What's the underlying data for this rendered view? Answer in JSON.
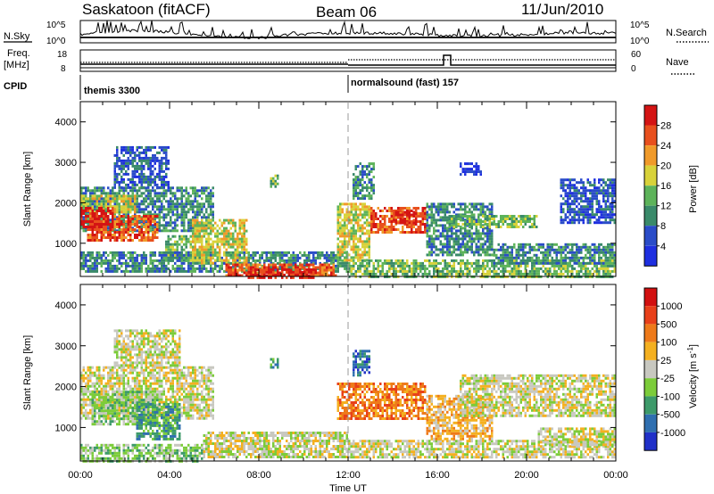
{
  "header": {
    "title": "Saskatoon (fitACF)",
    "beam": "Beam 06",
    "date": "11/Jun/2010"
  },
  "top_panels": {
    "nsky_label": "N.Sky",
    "nsearch_label": "N.Search",
    "nsky_axis": [
      "10^5",
      "10^0"
    ],
    "freq_label_1": "Freq.",
    "freq_label_2": "[MHz]",
    "freq_axis": [
      "18",
      "8"
    ],
    "nave_label": "Nave",
    "nave_axis": [
      "60",
      "0"
    ],
    "cpid_label": "CPID",
    "modes": [
      {
        "name": "themis 3300",
        "start_hour": 0
      },
      {
        "name": "normalsound (fast) 157",
        "start_hour": 12
      }
    ]
  },
  "chart_data": [
    {
      "type": "heatmap",
      "name": "power",
      "ylabel": "Slant Range [km]",
      "xlabel": "Time UT",
      "x_ticks": [
        "00:00",
        "04:00",
        "08:00",
        "12:00",
        "16:00",
        "20:00",
        "00:00"
      ],
      "x_range_hours": [
        0,
        24
      ],
      "y_ticks": [
        1000,
        2000,
        3000,
        4000
      ],
      "ylim": [
        180,
        4500
      ],
      "colorbar_label": "Power [dB]",
      "colorbar_ticks": [
        4,
        8,
        12,
        16,
        20,
        24,
        28
      ],
      "colorbar_colors": [
        "#1e2fe0",
        "#2a4cc8",
        "#3a8a6a",
        "#5db35a",
        "#d8d23a",
        "#f09a2a",
        "#e8501e",
        "#d41414"
      ],
      "regions": [
        {
          "t0": 0.0,
          "t1": 6.0,
          "r0": 1300,
          "r1": 2400,
          "level": 2
        },
        {
          "t0": 0.0,
          "t1": 2.5,
          "r0": 1800,
          "r1": 2200,
          "level": 4
        },
        {
          "t0": 1.5,
          "t1": 4.0,
          "r0": 2400,
          "r1": 3400,
          "level": 1
        },
        {
          "t0": 0.3,
          "t1": 3.5,
          "r0": 1100,
          "r1": 1700,
          "level": 6
        },
        {
          "t0": 0.0,
          "t1": 1.5,
          "r0": 1400,
          "r1": 1900,
          "level": 7
        },
        {
          "t0": 3.8,
          "t1": 5.5,
          "r0": 600,
          "r1": 1200,
          "level": 3
        },
        {
          "t0": 0.0,
          "t1": 12.0,
          "r0": 300,
          "r1": 800,
          "level": 2
        },
        {
          "t0": 5.0,
          "t1": 7.5,
          "r0": 500,
          "r1": 1600,
          "level": 4
        },
        {
          "t0": 6.5,
          "t1": 11.5,
          "r0": 180,
          "r1": 500,
          "level": 6
        },
        {
          "t0": 7.5,
          "t1": 10.5,
          "r0": 180,
          "r1": 380,
          "level": 7
        },
        {
          "t0": 8.5,
          "t1": 8.9,
          "r0": 2400,
          "r1": 2700,
          "level": 3
        },
        {
          "t0": 11.5,
          "t1": 13.0,
          "r0": 600,
          "r1": 2000,
          "level": 4
        },
        {
          "t0": 12.2,
          "t1": 13.2,
          "r0": 2100,
          "r1": 3000,
          "level": 2
        },
        {
          "t0": 13.0,
          "t1": 15.5,
          "r0": 1300,
          "r1": 1900,
          "level": 6
        },
        {
          "t0": 14.0,
          "t1": 15.0,
          "r0": 1500,
          "r1": 1800,
          "level": 7
        },
        {
          "t0": 12.0,
          "t1": 24.0,
          "r0": 180,
          "r1": 600,
          "level": 3
        },
        {
          "t0": 15.5,
          "t1": 18.5,
          "r0": 700,
          "r1": 2000,
          "level": 2
        },
        {
          "t0": 16.5,
          "t1": 20.5,
          "r0": 1400,
          "r1": 1700,
          "level": 3
        },
        {
          "t0": 18.5,
          "t1": 24.0,
          "r0": 500,
          "r1": 1000,
          "level": 2
        },
        {
          "t0": 21.5,
          "t1": 24.0,
          "r0": 1500,
          "r1": 2600,
          "level": 1
        },
        {
          "t0": 17.0,
          "t1": 18.0,
          "r0": 2700,
          "r1": 3000,
          "level": 0
        }
      ]
    },
    {
      "type": "heatmap",
      "name": "velocity",
      "ylabel": "Slant Range [km]",
      "xlabel": "Time UT",
      "x_ticks": [
        "00:00",
        "04:00",
        "08:00",
        "12:00",
        "16:00",
        "20:00",
        "00:00"
      ],
      "x_range_hours": [
        0,
        24
      ],
      "y_ticks": [
        1000,
        2000,
        3000,
        4000
      ],
      "ylim": [
        180,
        4500
      ],
      "colorbar_label": "Velocity [m s-1]",
      "colorbar_ticks": [
        "1000",
        "500",
        "100",
        "25",
        "-25",
        "-100",
        "-500",
        "-1000"
      ],
      "colorbar_colors": [
        "#2030c8",
        "#2f6fb0",
        "#3d9a6a",
        "#7ccc3a",
        "#c8c8c0",
        "#f4b020",
        "#ee7a1a",
        "#e8401a",
        "#d21010"
      ],
      "regions": [
        {
          "t0": 0.0,
          "t1": 6.0,
          "r0": 1200,
          "r1": 2500,
          "level": 4
        },
        {
          "t0": 0.5,
          "t1": 3.5,
          "r0": 1100,
          "r1": 1900,
          "level": 3
        },
        {
          "t0": 2.5,
          "t1": 4.5,
          "r0": 700,
          "r1": 1600,
          "level": 2
        },
        {
          "t0": 1.5,
          "t1": 4.5,
          "r0": 2500,
          "r1": 3400,
          "level": 4
        },
        {
          "t0": 5.5,
          "t1": 12.0,
          "r0": 300,
          "r1": 900,
          "level": 4
        },
        {
          "t0": 0.0,
          "t1": 5.5,
          "r0": 200,
          "r1": 600,
          "level": 3
        },
        {
          "t0": 8.5,
          "t1": 8.9,
          "r0": 2450,
          "r1": 2700,
          "level": 2
        },
        {
          "t0": 11.5,
          "t1": 15.5,
          "r0": 1200,
          "r1": 2100,
          "level": 6
        },
        {
          "t0": 12.2,
          "t1": 13.0,
          "r0": 2300,
          "r1": 2900,
          "level": 1
        },
        {
          "t0": 12.0,
          "t1": 24.0,
          "r0": 250,
          "r1": 700,
          "level": 4
        },
        {
          "t0": 15.5,
          "t1": 18.5,
          "r0": 700,
          "r1": 1800,
          "level": 5
        },
        {
          "t0": 17.0,
          "t1": 24.0,
          "r0": 1300,
          "r1": 2300,
          "level": 4
        },
        {
          "t0": 20.5,
          "t1": 24.0,
          "r0": 600,
          "r1": 1000,
          "level": 4
        }
      ]
    }
  ],
  "colorbar_labels": {
    "power": "Power [dB]",
    "velocity_main": "Velocity [m s",
    "velocity_exp": "-1",
    "velocity_close": "]"
  }
}
